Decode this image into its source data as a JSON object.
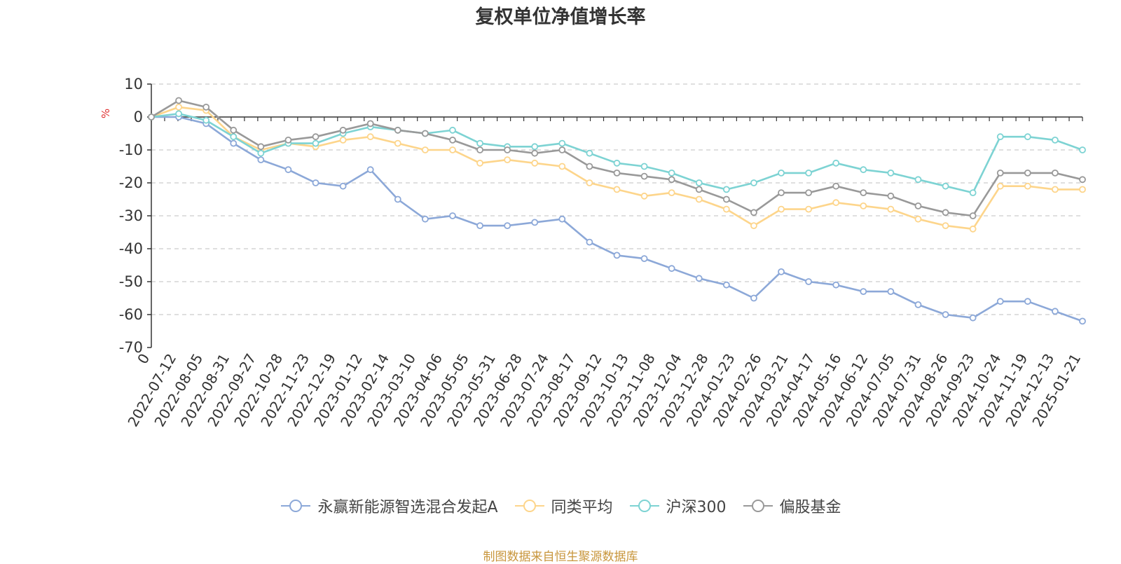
{
  "title": "复权单位净值增长率",
  "source_note": "制图数据来自恒生聚源数据库",
  "chart_data": {
    "type": "line",
    "title": "复权单位净值增长率",
    "ylabel": "%",
    "ylim": [
      -70,
      10
    ],
    "yticks": [
      10,
      0,
      -10,
      -20,
      -30,
      -40,
      -50,
      -60,
      -70
    ],
    "grid": true,
    "legend_position": "bottom",
    "x_start_label": "0",
    "x": [
      "2022-07-12",
      "2022-08-05",
      "2022-08-31",
      "2022-09-27",
      "2022-10-28",
      "2022-11-23",
      "2022-12-19",
      "2023-01-12",
      "2023-02-14",
      "2023-03-10",
      "2023-04-06",
      "2023-05-05",
      "2023-05-31",
      "2023-06-28",
      "2023-07-24",
      "2023-08-17",
      "2023-09-12",
      "2023-10-13",
      "2023-11-08",
      "2023-12-04",
      "2023-12-28",
      "2024-01-23",
      "2024-02-26",
      "2024-03-21",
      "2024-04-17",
      "2024-05-16",
      "2024-06-12",
      "2024-07-05",
      "2024-07-31",
      "2024-08-26",
      "2024-09-23",
      "2024-10-24",
      "2024-11-19",
      "2024-12-13",
      "2025-01-21"
    ],
    "series": [
      {
        "name": "永赢新能源智选混合发起A",
        "color": "#8ca8d8",
        "values": [
          0,
          0,
          -2,
          -8,
          -13,
          -16,
          -20,
          -21,
          -16,
          -25,
          -31,
          -30,
          -33,
          -33,
          -32,
          -31,
          -38,
          -42,
          -43,
          -46,
          -49,
          -51,
          -55,
          -47,
          -50,
          -51,
          -53,
          -53,
          -57,
          -60,
          -61,
          -56,
          -56,
          -59,
          -62
        ]
      },
      {
        "name": "同类平均",
        "color": "#fdd58b",
        "values": [
          0,
          3,
          2,
          -6,
          -10,
          -8,
          -9,
          -7,
          -6,
          -8,
          -10,
          -10,
          -14,
          -13,
          -14,
          -15,
          -20,
          -22,
          -24,
          -23,
          -25,
          -28,
          -33,
          -28,
          -28,
          -26,
          -27,
          -28,
          -31,
          -33,
          -34,
          -21,
          -21,
          -22,
          -22
        ]
      },
      {
        "name": "沪深300",
        "color": "#7dd3d3",
        "values": [
          0,
          1,
          -1,
          -6,
          -11,
          -8,
          -8,
          -5,
          -3,
          -4,
          -5,
          -4,
          -8,
          -9,
          -9,
          -8,
          -11,
          -14,
          -15,
          -17,
          -20,
          -22,
          -20,
          -17,
          -17,
          -14,
          -16,
          -17,
          -19,
          -21,
          -23,
          -6,
          -6,
          -7,
          -10
        ]
      },
      {
        "name": "偏股基金",
        "color": "#999999",
        "values": [
          0,
          5,
          3,
          -4,
          -9,
          -7,
          -6,
          -4,
          -2,
          -4,
          -5,
          -7,
          -10,
          -10,
          -11,
          -10,
          -15,
          -17,
          -18,
          -19,
          -22,
          -25,
          -29,
          -23,
          -23,
          -21,
          -23,
          -24,
          -27,
          -29,
          -30,
          -17,
          -17,
          -17,
          -19
        ]
      }
    ]
  }
}
